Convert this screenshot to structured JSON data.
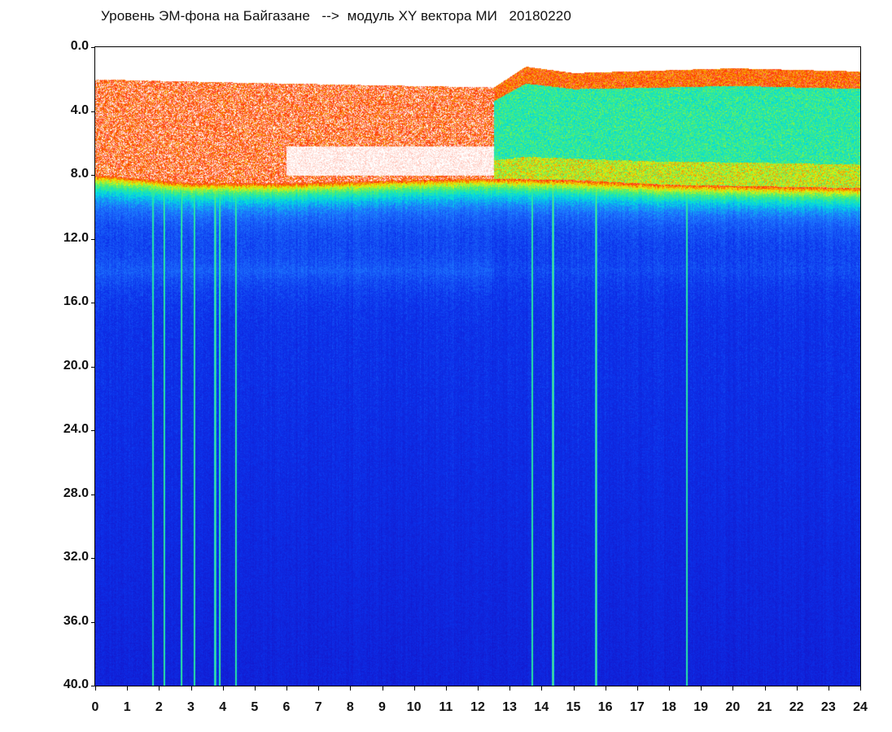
{
  "chart": {
    "title": "Уровень ЭМ-фона на Байгазане   -->  модуль XY вектора МИ   20180220"
  },
  "chart_data": {
    "type": "heatmap",
    "title": "Уровень ЭМ-фона на Байгазане   -->  модуль XY вектора МИ   20180220",
    "xlabel": "",
    "ylabel": "",
    "xlim": [
      0,
      24
    ],
    "ylim": [
      40.0,
      0.0
    ],
    "y_axis_inverted": true,
    "x_ticks": [
      "0",
      "1",
      "2",
      "3",
      "4",
      "5",
      "6",
      "7",
      "8",
      "9",
      "10",
      "11",
      "12",
      "13",
      "14",
      "15",
      "16",
      "17",
      "18",
      "19",
      "20",
      "21",
      "22",
      "23",
      "24"
    ],
    "y_ticks": [
      "0.0",
      "4.0",
      "8.0",
      "12.0",
      "16.0",
      "20.0",
      "24.0",
      "28.0",
      "32.0",
      "36.0",
      "40.0"
    ],
    "colormap": [
      "#1a1ad8",
      "#0c3cf0",
      "#1e90ff",
      "#00e0e0",
      "#40f080",
      "#f0f000",
      "#ff2000",
      "#ffffff"
    ],
    "features": {
      "high_intensity_band_upper_edge": [
        {
          "x": 0.1,
          "y": 2.0
        },
        {
          "x": 4.5,
          "y": 2.2
        },
        {
          "x": 12.5,
          "y": 2.5
        },
        {
          "x": 13.5,
          "y": 1.2
        },
        {
          "x": 15.0,
          "y": 1.6
        },
        {
          "x": 20.0,
          "y": 1.3
        },
        {
          "x": 24.0,
          "y": 1.5
        }
      ],
      "high_intensity_band_lower_edge": [
        {
          "x": 0.1,
          "y": 8.0
        },
        {
          "x": 3.0,
          "y": 8.5
        },
        {
          "x": 6.0,
          "y": 8.5
        },
        {
          "x": 12.0,
          "y": 8.2
        },
        {
          "x": 15.0,
          "y": 8.3
        },
        {
          "x": 18.0,
          "y": 8.6
        },
        {
          "x": 24.0,
          "y": 8.8
        }
      ],
      "quiet_gap": [
        {
          "x_from": 6.0,
          "x_to": 12.5,
          "y_from": 6.2,
          "y_to": 8.0
        }
      ],
      "secondary_band_y": 14.0,
      "vertical_spikes_x": [
        1.8,
        2.15,
        2.7,
        3.1,
        3.75,
        3.9,
        4.4,
        13.7,
        14.35,
        15.7,
        18.55
      ]
    }
  }
}
